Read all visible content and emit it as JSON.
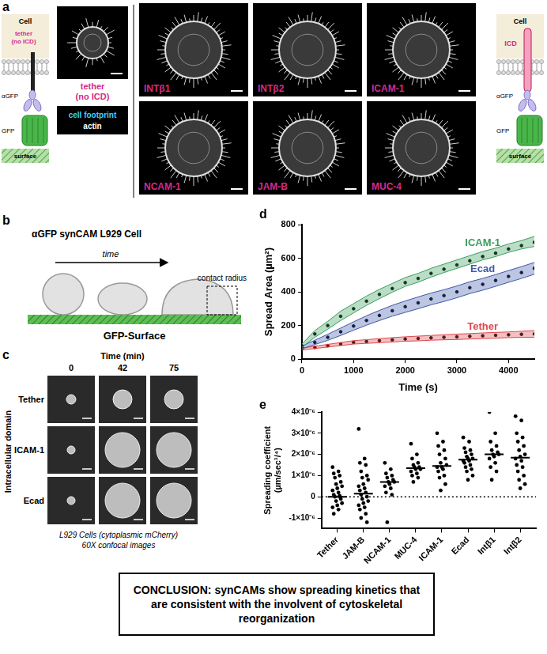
{
  "panels": {
    "a": {
      "label": "a",
      "left_schematic": {
        "cell": "Cell",
        "tether": [
          "tether",
          "(no ICD)"
        ],
        "antibody": "αGFP",
        "gfp": "GFP",
        "surface": "surface"
      },
      "tether_image": {
        "label": [
          "tether",
          "(no ICD)"
        ]
      },
      "key": {
        "cell_footprint": "cell footprint",
        "actin": "actin"
      },
      "images": [
        "INTβ1",
        "INTβ2",
        "ICAM-1",
        "NCAM-1",
        "JAM-B",
        "MUC-4"
      ],
      "right_schematic": {
        "cell": "Cell",
        "icd": "ICD",
        "antibody": "αGFP",
        "gfp": "GFP",
        "surface": "surface"
      }
    },
    "b": {
      "label": "b",
      "title": "αGFP synCAM L929 Cell",
      "arrow": "time",
      "annotation": "contact radius",
      "surface": "GFP-Surface"
    },
    "c": {
      "label": "c",
      "column_title": "Time (min)",
      "columns": [
        0,
        42,
        75
      ],
      "row_title": "Intracellular domain",
      "rows": [
        "Tether",
        "ICAM-1",
        "Ecad"
      ],
      "caption": [
        "L929 Cells (cytoplasmic  mCherry)",
        "60X confocal images"
      ]
    }
  },
  "chart_data": [
    {
      "panel": "d",
      "type": "line",
      "x_label": "Time (s)",
      "y_label": "Spread Area (µm²)",
      "x": [
        0,
        250,
        500,
        750,
        1000,
        1250,
        1500,
        1750,
        2000,
        2250,
        2500,
        2750,
        3000,
        3250,
        3500,
        3750,
        4000,
        4250,
        4500
      ],
      "xlim": [
        0,
        4500
      ],
      "xticks": [
        0,
        1000,
        2000,
        3000,
        4000
      ],
      "ylim": [
        0,
        800
      ],
      "yticks": [
        0,
        200,
        400,
        600,
        800
      ],
      "grid": false,
      "series": [
        {
          "name": "ICAM-1",
          "color": "#3a9d5d",
          "marker": "circle",
          "values": [
            80,
            150,
            200,
            255,
            300,
            345,
            385,
            420,
            455,
            480,
            510,
            535,
            560,
            585,
            610,
            630,
            655,
            675,
            695
          ],
          "upper": [
            90,
            170,
            225,
            285,
            330,
            375,
            415,
            450,
            485,
            510,
            540,
            565,
            590,
            615,
            640,
            660,
            685,
            705,
            730
          ],
          "lower": [
            70,
            130,
            178,
            230,
            275,
            320,
            360,
            398,
            433,
            458,
            488,
            515,
            540,
            565,
            590,
            610,
            635,
            655,
            670
          ]
        },
        {
          "name": "Ecad",
          "color": "#3f5aa8",
          "marker": "circle",
          "values": [
            70,
            100,
            130,
            163,
            197,
            230,
            260,
            288,
            312,
            335,
            358,
            378,
            400,
            425,
            445,
            468,
            492,
            515,
            540
          ],
          "upper": [
            78,
            113,
            148,
            185,
            222,
            258,
            290,
            320,
            346,
            370,
            393,
            413,
            435,
            460,
            480,
            503,
            527,
            550,
            575
          ],
          "lower": [
            62,
            87,
            112,
            141,
            172,
            202,
            230,
            256,
            278,
            300,
            323,
            343,
            365,
            390,
            410,
            433,
            457,
            480,
            505
          ]
        },
        {
          "name": "Tether",
          "color": "#e0474c",
          "marker": "circle",
          "values": [
            60,
            70,
            80,
            90,
            100,
            105,
            110,
            115,
            120,
            123,
            127,
            130,
            133,
            136,
            139,
            142,
            145,
            148,
            150
          ],
          "upper": [
            65,
            77,
            88,
            99,
            110,
            116,
            122,
            128,
            133,
            137,
            141,
            145,
            149,
            152,
            156,
            159,
            162,
            166,
            170
          ],
          "lower": [
            55,
            63,
            72,
            81,
            90,
            94,
            98,
            102,
            107,
            109,
            113,
            115,
            117,
            120,
            122,
            125,
            128,
            130,
            130
          ]
        }
      ]
    },
    {
      "panel": "e",
      "type": "scatter",
      "y_label": [
        "Spreading coefficient",
        "(µm/sec¹/⁴)"
      ],
      "categories": [
        "Tether",
        "JAM-B",
        "NCAM-1",
        "MUC-4",
        "ICAM-1",
        "Ecad",
        "Intβ1",
        "Intβ2"
      ],
      "color": "#000000",
      "marker": "circle",
      "grid": false,
      "ylim": [
        -1.5e-06,
        4e-06
      ],
      "yticks": [
        {
          "value": -1e-06,
          "label": "-1×10⁻⁶"
        },
        0,
        {
          "value": 1e-06,
          "label": "1×10⁻⁶"
        },
        {
          "value": 2e-06,
          "label": "2×10⁻⁶"
        },
        {
          "value": 3e-06,
          "label": "3×10⁻⁶"
        },
        {
          "value": 4e-06,
          "label": "4×10⁻⁶"
        }
      ],
      "reference_line": 0,
      "medians": [
        0,
        1.5e-07,
        7e-07,
        1.35e-06,
        1.45e-06,
        1.75e-06,
        2e-06,
        1.85e-06
      ],
      "values": [
        [
          1.4e-06,
          1.2e-06,
          1.1e-06,
          1e-06,
          9e-07,
          7e-07,
          6e-07,
          5e-07,
          4e-07,
          3e-07,
          2e-07,
          1e-07,
          0,
          0,
          -1e-07,
          -2e-07,
          -3e-07,
          -4e-07,
          -5e-07,
          -6e-07,
          -8e-07,
          5e-08
        ],
        [
          3.2e-06,
          1.8e-06,
          1.6e-06,
          1.5e-06,
          1.2e-06,
          1e-06,
          9e-07,
          8e-07,
          6e-07,
          5e-07,
          4e-07,
          3e-07,
          2e-07,
          1e-07,
          0,
          -1e-07,
          -2e-07,
          -3e-07,
          -4e-07,
          -5e-07,
          -6e-07,
          -8e-07,
          -1e-06,
          -1.2e-06
        ],
        [
          1.6e-06,
          1.3e-06,
          1.1e-06,
          1e-06,
          9e-07,
          8e-07,
          7e-07,
          7e-07,
          6e-07,
          5e-07,
          4e-07,
          2e-07,
          1e-07,
          -1.2e-06
        ],
        [
          2.5e-06,
          2e-06,
          1.8e-06,
          1.6e-06,
          1.5e-06,
          1.4e-06,
          1.4e-06,
          1.3e-06,
          1.3e-06,
          1.2e-06,
          1.1e-06,
          1e-06,
          9e-07,
          7e-07
        ],
        [
          3e-06,
          2.6e-06,
          2.4e-06,
          2.2e-06,
          2e-06,
          1.8e-06,
          1.6e-06,
          1.5e-06,
          1.4e-06,
          1.4e-06,
          1.3e-06,
          1.2e-06,
          1e-06,
          9e-07,
          6e-07,
          3e-07
        ],
        [
          2.8e-06,
          2.6e-06,
          2.3e-06,
          2.2e-06,
          2.1e-06,
          2e-06,
          1.9e-06,
          1.8e-06,
          1.8e-06,
          1.7e-06,
          1.7e-06,
          1.6e-06,
          1.5e-06,
          1.4e-06,
          1.3e-06,
          1.2e-06,
          1e-06,
          8e-07
        ],
        [
          4e-06,
          3e-06,
          2.6e-06,
          2.4e-06,
          2.2e-06,
          2.1e-06,
          2e-06,
          2e-06,
          1.9e-06,
          1.8e-06,
          1.6e-06,
          1.4e-06,
          1.2e-06,
          8e-07
        ],
        [
          3.8e-06,
          3.6e-06,
          3e-06,
          2.8e-06,
          2.6e-06,
          2.4e-06,
          2.2e-06,
          2e-06,
          1.9e-06,
          1.8e-06,
          1.7e-06,
          1.5e-06,
          1.4e-06,
          1.2e-06,
          1e-06,
          8e-07,
          6e-07,
          4e-07
        ]
      ]
    }
  ],
  "conclusion": "CONCLUSION: synCAMs show spreading kinetics that are consistent with the involvent of cytoskeletal reorganization"
}
